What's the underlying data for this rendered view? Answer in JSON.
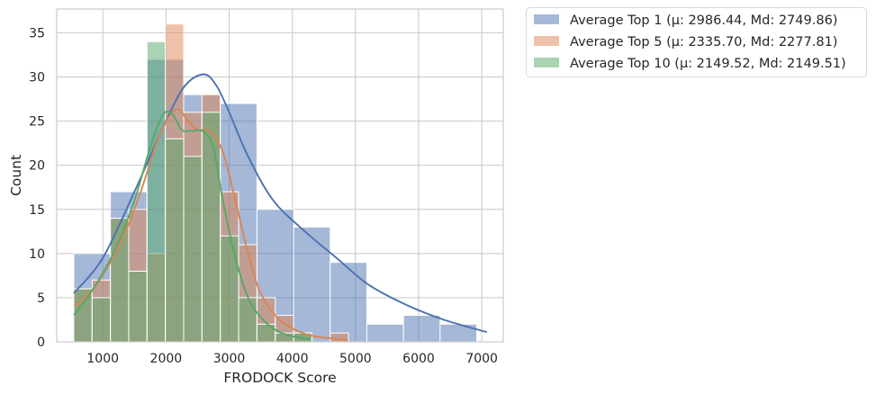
{
  "chart_data": {
    "type": "histogram",
    "xlabel": "FRODOCK Score",
    "ylabel": "Count",
    "xlim": [
      270,
      7340
    ],
    "ylim": [
      0,
      37.7
    ],
    "xticks": [
      1000,
      2000,
      3000,
      4000,
      5000,
      6000,
      7000
    ],
    "yticks": [
      0,
      5,
      10,
      15,
      20,
      25,
      30,
      35
    ],
    "grid": true,
    "legend_position": "outside-top-right",
    "series": [
      {
        "name": "Average Top 1 (μ: 2986.44, Md: 2749.86)",
        "color": "#4c72b0",
        "bin_width": 580,
        "bins": [
          {
            "x0": 540,
            "x1": 1120,
            "count": 10
          },
          {
            "x0": 1120,
            "x1": 1700,
            "count": 17
          },
          {
            "x0": 1700,
            "x1": 2280,
            "count": 32
          },
          {
            "x0": 2280,
            "x1": 2860,
            "count": 28
          },
          {
            "x0": 2860,
            "x1": 3440,
            "count": 27
          },
          {
            "x0": 3440,
            "x1": 4020,
            "count": 15
          },
          {
            "x0": 4020,
            "x1": 4600,
            "count": 13
          },
          {
            "x0": 4600,
            "x1": 5180,
            "count": 9
          },
          {
            "x0": 5180,
            "x1": 5760,
            "count": 2
          },
          {
            "x0": 5760,
            "x1": 6340,
            "count": 3
          },
          {
            "x0": 6340,
            "x1": 6920,
            "count": 2
          }
        ],
        "kde": [
          [
            540,
            5.5
          ],
          [
            1000,
            9.5
          ],
          [
            1500,
            17
          ],
          [
            2000,
            25
          ],
          [
            2300,
            29
          ],
          [
            2600,
            30.3
          ],
          [
            2800,
            29
          ],
          [
            3000,
            26
          ],
          [
            3300,
            21
          ],
          [
            3700,
            16
          ],
          [
            4200,
            12.5
          ],
          [
            4700,
            9.5
          ],
          [
            5200,
            6.5
          ],
          [
            5800,
            4.2
          ],
          [
            6400,
            2.5
          ],
          [
            7080,
            1.1
          ]
        ]
      },
      {
        "name": "Average Top 5 (μ: 2335.70, Md: 2277.81)",
        "color": "#dd8452",
        "bin_width": 290,
        "bins": [
          {
            "x0": 540,
            "x1": 830,
            "count": 6
          },
          {
            "x0": 830,
            "x1": 1120,
            "count": 7
          },
          {
            "x0": 1120,
            "x1": 1410,
            "count": 14
          },
          {
            "x0": 1410,
            "x1": 1700,
            "count": 15
          },
          {
            "x0": 1700,
            "x1": 1990,
            "count": 10
          },
          {
            "x0": 1990,
            "x1": 2280,
            "count": 36
          },
          {
            "x0": 2280,
            "x1": 2570,
            "count": 26
          },
          {
            "x0": 2570,
            "x1": 2860,
            "count": 28
          },
          {
            "x0": 2860,
            "x1": 3150,
            "count": 17
          },
          {
            "x0": 3150,
            "x1": 3440,
            "count": 11
          },
          {
            "x0": 3440,
            "x1": 3730,
            "count": 5
          },
          {
            "x0": 3730,
            "x1": 4020,
            "count": 3
          },
          {
            "x0": 4020,
            "x1": 4310,
            "count": 1
          },
          {
            "x0": 4310,
            "x1": 4600,
            "count": 0
          },
          {
            "x0": 4600,
            "x1": 4890,
            "count": 1
          }
        ],
        "kde": [
          [
            560,
            4
          ],
          [
            900,
            6.5
          ],
          [
            1300,
            11.5
          ],
          [
            1600,
            17
          ],
          [
            1850,
            22.5
          ],
          [
            2050,
            25.5
          ],
          [
            2200,
            26.3
          ],
          [
            2350,
            25
          ],
          [
            2500,
            24
          ],
          [
            2700,
            23.8
          ],
          [
            2900,
            21.5
          ],
          [
            3100,
            16
          ],
          [
            3300,
            10
          ],
          [
            3500,
            5.5
          ],
          [
            3800,
            2.5
          ],
          [
            4200,
            0.9
          ],
          [
            4600,
            0.4
          ],
          [
            4880,
            0.2
          ]
        ]
      },
      {
        "name": "Average Top 10 (μ: 2149.52, Md: 2149.51)",
        "color": "#55a868",
        "bin_width": 290,
        "bins": [
          {
            "x0": 540,
            "x1": 830,
            "count": 6
          },
          {
            "x0": 830,
            "x1": 1120,
            "count": 5
          },
          {
            "x0": 1120,
            "x1": 1410,
            "count": 14
          },
          {
            "x0": 1410,
            "x1": 1700,
            "count": 8
          },
          {
            "x0": 1700,
            "x1": 1990,
            "count": 34
          },
          {
            "x0": 1990,
            "x1": 2280,
            "count": 23
          },
          {
            "x0": 2280,
            "x1": 2570,
            "count": 21
          },
          {
            "x0": 2570,
            "x1": 2860,
            "count": 26
          },
          {
            "x0": 2860,
            "x1": 3150,
            "count": 12
          },
          {
            "x0": 3150,
            "x1": 3440,
            "count": 5
          },
          {
            "x0": 3440,
            "x1": 3730,
            "count": 2
          },
          {
            "x0": 3730,
            "x1": 4020,
            "count": 1
          },
          {
            "x0": 4020,
            "x1": 4310,
            "count": 1
          }
        ],
        "kde": [
          [
            540,
            3
          ],
          [
            850,
            6
          ],
          [
            1200,
            10.5
          ],
          [
            1500,
            16
          ],
          [
            1750,
            22
          ],
          [
            1950,
            25.7
          ],
          [
            2100,
            25.8
          ],
          [
            2250,
            24
          ],
          [
            2400,
            23.9
          ],
          [
            2600,
            23.8
          ],
          [
            2750,
            22
          ],
          [
            2900,
            16
          ],
          [
            3100,
            9.5
          ],
          [
            3300,
            5
          ],
          [
            3500,
            2.8
          ],
          [
            3700,
            1.5
          ],
          [
            3950,
            0.7
          ],
          [
            4280,
            0.3
          ]
        ]
      }
    ]
  }
}
